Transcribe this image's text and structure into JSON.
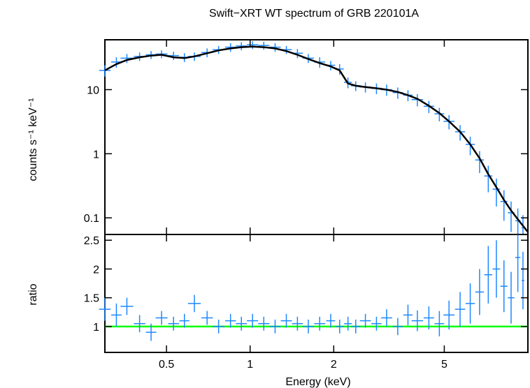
{
  "chart_data": {
    "type": "line",
    "title": "Swift−XRT WT spectrum of GRB 220101A",
    "xlabel": "Energy (keV)",
    "x_scale": "log",
    "xlim": [
      0.3,
      10
    ],
    "x_ticks": [
      {
        "value": 0.5,
        "label": "0.5"
      },
      {
        "value": 1,
        "label": "1"
      },
      {
        "value": 2,
        "label": "2"
      },
      {
        "value": 5,
        "label": "5"
      }
    ],
    "panels": [
      {
        "id": "spectrum",
        "ylabel": "counts s⁻¹ keV⁻¹",
        "y_scale": "log",
        "ylim": [
          0.055,
          60
        ],
        "y_ticks": [
          {
            "value": 0.1,
            "label": "0.1"
          },
          {
            "value": 1,
            "label": "1"
          },
          {
            "value": 10,
            "label": "10"
          }
        ],
        "series": [
          {
            "style": "data-points",
            "color": "#1e88ff",
            "x": [
              0.3,
              0.33,
              0.36,
              0.4,
              0.44,
              0.48,
              0.53,
              0.58,
              0.63,
              0.7,
              0.77,
              0.85,
              0.93,
              1.02,
              1.12,
              1.23,
              1.35,
              1.48,
              1.62,
              1.78,
              1.95,
              2.1,
              2.25,
              2.4,
              2.6,
              2.85,
              3.1,
              3.4,
              3.7,
              4.0,
              4.4,
              4.8,
              5.2,
              5.7,
              6.2,
              6.7,
              7.2,
              7.7,
              8.2,
              8.7,
              9.2,
              9.6
            ],
            "y": [
              20,
              27,
              31,
              33,
              35,
              36,
              34,
              32,
              33,
              38,
              42,
              46,
              48,
              50,
              49,
              46,
              42,
              37,
              31,
              27,
              24,
              21,
              13.0,
              11.5,
              11,
              10.5,
              10,
              9.0,
              8.2,
              7.0,
              5.5,
              4.2,
              3.2,
              2.2,
              1.4,
              0.8,
              0.45,
              0.28,
              0.18,
              0.12,
              0.09,
              0.07
            ],
            "y_err": [
              4,
              5,
              5,
              5,
              5,
              5,
              5,
              5,
              5,
              6,
              6,
              7,
              7,
              7,
              7,
              7,
              6,
              6,
              5,
              5,
              4,
              4,
              2.5,
              2,
              2,
              2,
              2,
              1.8,
              1.6,
              1.5,
              1.2,
              1.0,
              0.8,
              0.6,
              0.45,
              0.3,
              0.2,
              0.13,
              0.09,
              0.06,
              0.05,
              0.04
            ]
          },
          {
            "style": "model-line",
            "color": "#000000",
            "x": [
              0.3,
              0.33,
              0.36,
              0.4,
              0.44,
              0.48,
              0.53,
              0.58,
              0.63,
              0.7,
              0.77,
              0.85,
              0.93,
              1.02,
              1.12,
              1.23,
              1.35,
              1.48,
              1.62,
              1.78,
              1.95,
              2.1,
              2.25,
              2.4,
              2.6,
              2.85,
              3.1,
              3.4,
              3.7,
              4.0,
              4.4,
              4.8,
              5.2,
              5.7,
              6.2,
              6.7,
              7.2,
              7.7,
              8.2,
              8.7,
              9.2,
              9.6,
              10.0
            ],
            "y": [
              20,
              25,
              29,
              32,
              34,
              35,
              32,
              31,
              33,
              37,
              41,
              44,
              46,
              47,
              46,
              44,
              40,
              35,
              30,
              26,
              23,
              20,
              12.5,
              11.5,
              11,
              10.5,
              10,
              9.2,
              8.2,
              7.2,
              5.6,
              4.3,
              3.2,
              2.2,
              1.4,
              0.85,
              0.48,
              0.3,
              0.19,
              0.13,
              0.095,
              0.075,
              0.06
            ]
          }
        ]
      },
      {
        "id": "ratio",
        "ylabel": "ratio",
        "y_scale": "linear",
        "ylim": [
          0.55,
          2.6
        ],
        "y_ticks": [
          {
            "value": 1,
            "label": "1"
          },
          {
            "value": 1.5,
            "label": "1.5"
          },
          {
            "value": 2,
            "label": "2"
          },
          {
            "value": 2.5,
            "label": "2.5"
          }
        ],
        "reference_line": {
          "y": 1,
          "color": "#00ff00"
        },
        "series": [
          {
            "style": "data-points",
            "color": "#1e88ff",
            "x": [
              0.3,
              0.33,
              0.36,
              0.4,
              0.44,
              0.48,
              0.53,
              0.58,
              0.63,
              0.7,
              0.77,
              0.85,
              0.93,
              1.02,
              1.12,
              1.23,
              1.35,
              1.48,
              1.62,
              1.78,
              1.95,
              2.1,
              2.25,
              2.4,
              2.6,
              2.85,
              3.1,
              3.4,
              3.7,
              4.0,
              4.4,
              4.8,
              5.2,
              5.7,
              6.2,
              6.7,
              7.2,
              7.7,
              8.2,
              8.7,
              9.2,
              9.6
            ],
            "y": [
              1.3,
              1.2,
              1.35,
              1.05,
              0.9,
              1.15,
              1.05,
              1.1,
              1.4,
              1.15,
              1.0,
              1.1,
              1.05,
              1.1,
              1.05,
              1.0,
              1.1,
              1.05,
              1.0,
              1.05,
              1.1,
              1.0,
              1.05,
              1.0,
              1.1,
              1.05,
              1.15,
              1.0,
              1.2,
              1.1,
              1.15,
              1.05,
              1.2,
              1.3,
              1.4,
              1.6,
              1.9,
              2.0,
              1.7,
              1.5,
              2.2,
              1.8
            ],
            "y_err": [
              0.2,
              0.2,
              0.15,
              0.15,
              0.15,
              0.12,
              0.12,
              0.12,
              0.15,
              0.12,
              0.12,
              0.12,
              0.12,
              0.12,
              0.12,
              0.12,
              0.12,
              0.12,
              0.12,
              0.12,
              0.12,
              0.12,
              0.12,
              0.12,
              0.12,
              0.12,
              0.15,
              0.15,
              0.18,
              0.18,
              0.2,
              0.22,
              0.25,
              0.3,
              0.35,
              0.4,
              0.5,
              0.5,
              0.45,
              0.45,
              0.6,
              0.5
            ]
          }
        ]
      }
    ]
  }
}
